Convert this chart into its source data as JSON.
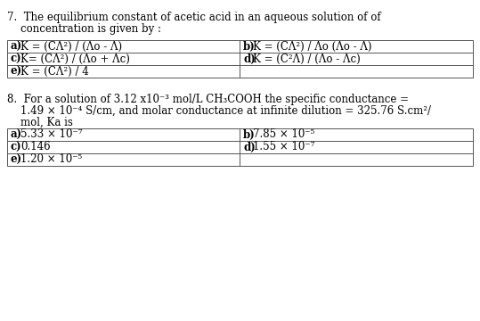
{
  "bg_color": "#ffffff",
  "q7_line1": "7.  The equilibrium constant of acetic acid in an aqueous solution of of",
  "q7_line2": "    concentration is given by :",
  "q7_a": "a) K = (CΛ²) / (Λo - Λ)",
  "q7_b": "b) K = (CΛ²) / Λo (Λo - Λ)",
  "q7_c": "c) K= (CΛ²) / (Λo + Λc)",
  "q7_d": "d) K = (C²Λ) / (Λo - Λc)",
  "q7_e": "e) K = (CΛ²) / 4",
  "q8_line1": "8.  For a solution of 3.12 x10⁻³ mol/L CH₃COOH the specific conductance =",
  "q8_line2": "    1.49 × 10⁻⁴ S/cm, and molar conductance at infinite dilution = 325.76 S.cm²/",
  "q8_line3": "    mol, Ka is",
  "q8_a": "a) 5.33 × 10⁻⁷",
  "q8_b": "b) 7.85 × 10⁻⁵",
  "q8_c": "c) 0.146",
  "q8_d": "d) 1.55 × 10⁻⁷",
  "q8_e": "e) 1.20 × 10⁻⁵",
  "font_size": 8.5,
  "bold_labels": [
    "a)",
    "b)",
    "c)",
    "d)",
    "e)"
  ]
}
